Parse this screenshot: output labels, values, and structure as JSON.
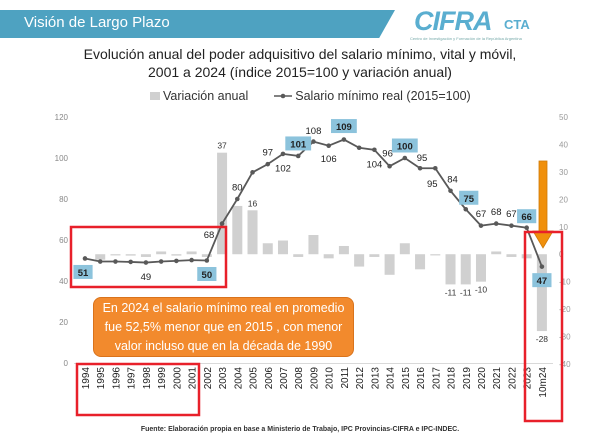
{
  "header": {
    "title": "Visión de Largo Plazo"
  },
  "logo": {
    "main": "CIFRA",
    "suffix": "CTA",
    "subtitle": "Centro de Investigación y Formación de la República Argentina"
  },
  "colors": {
    "band": "#4ea2c1",
    "bars": "#d0d0d0",
    "line": "#595959",
    "highlight": "#8cc3dc",
    "note": "#f28a2d",
    "frames": "#e8202a",
    "arrow": "#f0900c"
  },
  "annotation": {
    "lines": [
      "En 2024 el salario mínimo real en promedio",
      "fue 52,5% menor que en 2015 , con menor",
      "valor incluso que en la década de 1990"
    ]
  },
  "source": "Fuente: Elaboración propia en base a Ministerio de Trabajo, IPC Provincias-CIFRA e IPC-INDEC.",
  "chart_data": {
    "type": "bar+line",
    "title": [
      "Evolución anual del poder adquisitivo del salario mínimo, vital y móvil,",
      "2001 a 2024 (índice 2015=100 y variación anual)"
    ],
    "legend": [
      "Variación anual",
      "Salario mínimo real (2015=100)"
    ],
    "legend_position": "top",
    "categories": [
      "1994",
      "1995",
      "1996",
      "1997",
      "1998",
      "1999",
      "2000",
      "2001",
      "2002",
      "2003",
      "2004",
      "2005",
      "2006",
      "2007",
      "2008",
      "2009",
      "2010",
      "2011",
      "2012",
      "2013",
      "2014",
      "2015",
      "2016",
      "2017",
      "2018",
      "2019",
      "2020",
      "2021",
      "2022",
      "2023",
      "10m24"
    ],
    "left_axis": {
      "range": [
        0,
        120
      ],
      "ticks": [
        0,
        20,
        40,
        60,
        80,
        100,
        120
      ]
    },
    "right_axis": {
      "range": [
        -40,
        50
      ],
      "ticks": [
        50,
        40,
        30,
        20,
        10,
        0,
        -10,
        -20,
        -30,
        -40
      ]
    },
    "series": [
      {
        "name": "Variación anual",
        "type": "bar",
        "axis": "right",
        "values": [
          null,
          -2,
          -0.3,
          -0.5,
          -1,
          1,
          -0.5,
          1,
          -1,
          37,
          17.6,
          16,
          4,
          5,
          -1,
          7,
          -1.5,
          3,
          -4.5,
          -1,
          -7.5,
          4,
          -5.5,
          -0.2,
          -11,
          -11,
          -10,
          1,
          -1,
          -1.5,
          -28
        ],
        "labels": {
          "9": "37",
          "11": "16",
          "24": "-11",
          "25": "-11",
          "26": "-10",
          "30": "-28"
        }
      },
      {
        "name": "Salario mínimo real (2015=100)",
        "type": "line",
        "axis": "left",
        "values": [
          51,
          49.5,
          49.5,
          49.3,
          49,
          49.5,
          49.8,
          50.2,
          50,
          68,
          80,
          93,
          97,
          102,
          101,
          108,
          106,
          109,
          105,
          104,
          96,
          100,
          95,
          95,
          84,
          75,
          67,
          68,
          67,
          66,
          47
        ],
        "labels": {
          "0": "51",
          "4": "49",
          "8": "50",
          "9": "68",
          "10": "80",
          "12": "97",
          "13": "102",
          "14": "101",
          "15": "108",
          "16": "106",
          "17": "109",
          "19": "104",
          "20": "96",
          "21": "100",
          "22": "95",
          "23": "95",
          "24": "84",
          "25": "75",
          "26": "67",
          "27": "68",
          "28": "67",
          "29": "66",
          "30": "47"
        },
        "highlighted": [
          "0",
          "8",
          "14",
          "17",
          "21",
          "25",
          "29",
          "30"
        ]
      }
    ]
  }
}
